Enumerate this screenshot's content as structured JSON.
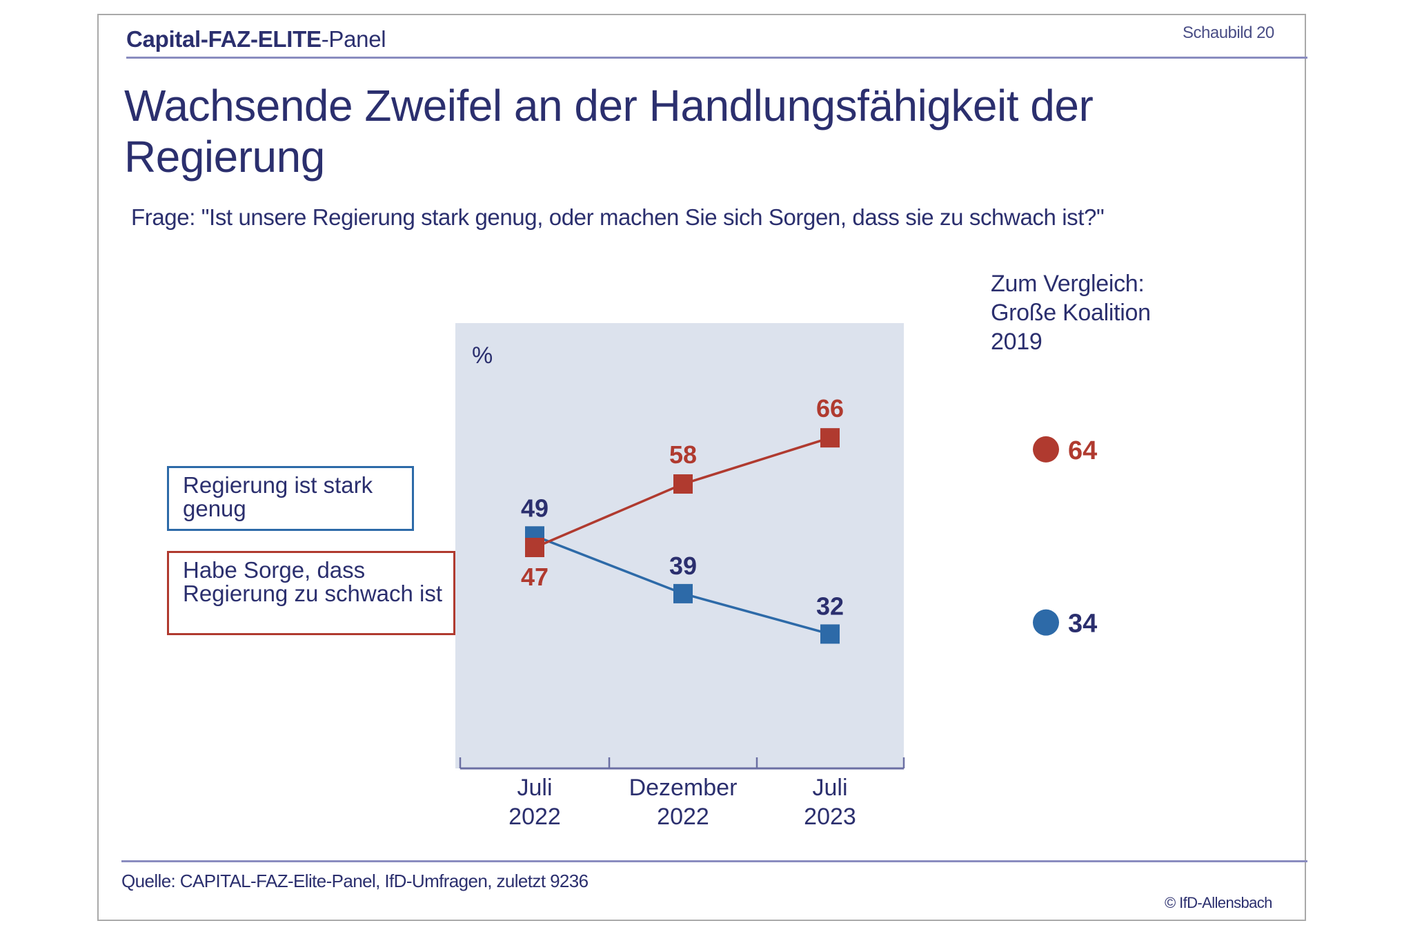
{
  "header": {
    "brand_bold_1": "Capital-FAZ-ELITE",
    "brand_light": "-Panel",
    "figure_label": "Schaubild  20"
  },
  "title": "Wachsende Zweifel an der Handlungsfähigkeit der Regierung",
  "question": "Frage: \"Ist unsere Regierung stark genug, oder machen Sie sich Sorgen, dass sie zu schwach ist?\"",
  "legend": {
    "strong": "Regierung ist stark genug",
    "weak": "Habe Sorge, dass Regierung zu schwach ist"
  },
  "comparison": {
    "title_lines": [
      "Zum Vergleich:",
      "Große Koalition",
      "2019"
    ],
    "values": [
      {
        "series": "weak",
        "value": 64,
        "label": "64"
      },
      {
        "series": "strong",
        "value": 34,
        "label": "34"
      }
    ]
  },
  "footer": {
    "source": "Quelle: CAPITAL-FAZ-Elite-Panel, IfD-Umfragen, zuletzt 9236",
    "copyright": "© IfD-Allensbach"
  },
  "colors": {
    "navy_text": "#2b2f6e",
    "blue_series": "#2d6aa8",
    "red_series": "#b03a2f",
    "chart_bg": "#dce2ed",
    "axis": "#6b6fa3"
  },
  "chart_data": {
    "type": "line",
    "title": "Wachsende Zweifel an der Handlungsfähigkeit der Regierung",
    "ylabel": "%",
    "xlabel": "",
    "categories": [
      [
        "Juli",
        "2022"
      ],
      [
        "Dezember",
        "2022"
      ],
      [
        "Juli",
        "2023"
      ]
    ],
    "series": [
      {
        "key": "strong",
        "name": "Regierung ist stark genug",
        "color": "#2d6aa8",
        "label_color": "#2b2f6e",
        "values": [
          49,
          39,
          32
        ]
      },
      {
        "key": "weak",
        "name": "Habe Sorge, dass Regierung zu schwach ist",
        "color": "#b03a2f",
        "label_color": "#b03a2f",
        "values": [
          47,
          58,
          66
        ]
      }
    ],
    "comparison": {
      "label": "Zum Vergleich: Große Koalition 2019",
      "strong": 34,
      "weak": 64
    },
    "ylim": [
      0,
      90
    ],
    "grid": false,
    "legend_position": "left"
  }
}
